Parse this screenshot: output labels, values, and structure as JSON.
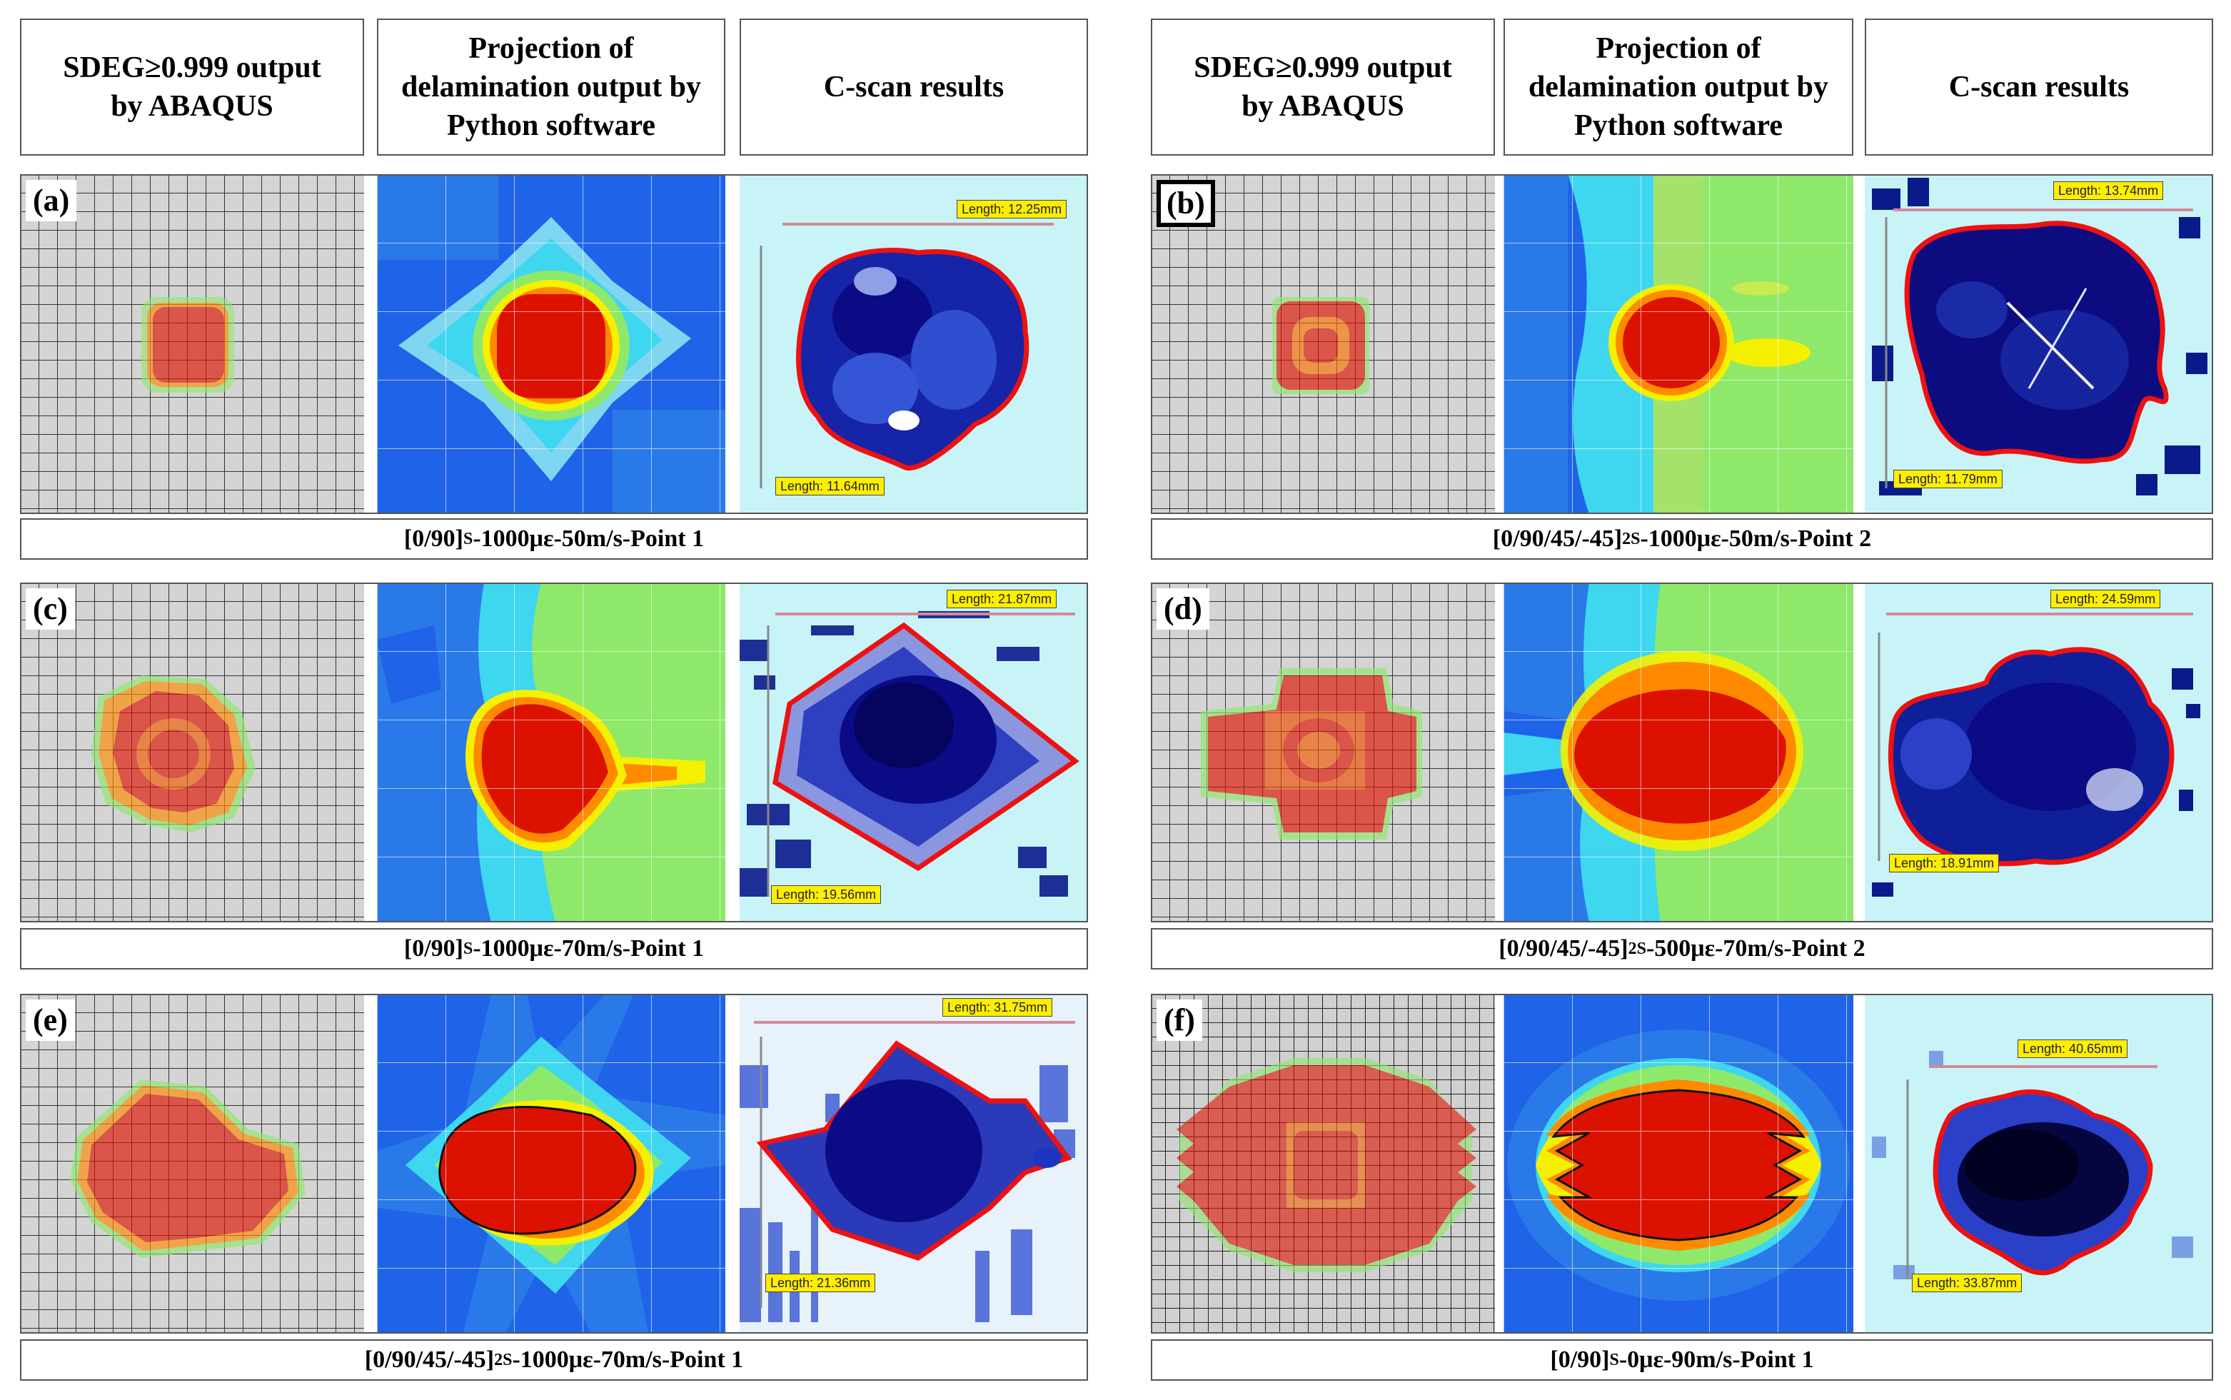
{
  "headers": {
    "col1": "SDEG≥0.999 output\nby ABAQUS",
    "col2": "Projection of\ndelamination output by\nPython software",
    "col3": "C-scan results"
  },
  "panels": {
    "a": {
      "label": "(a)",
      "cap_pre": "[0/90]",
      "cap_sub": "S",
      "cap_post": "-1000με-50m/s-Point 1",
      "len_h": "Length: 12.25mm",
      "len_v": "Length: 11.64mm"
    },
    "b": {
      "label": "(b)",
      "cap_pre": "[0/90/45/-45]",
      "cap_sub": "2S",
      "cap_post": "-1000με-50m/s-Point 2",
      "len_h": "Length: 13.74mm",
      "len_v": "Length: 11.79mm"
    },
    "c": {
      "label": "(c)",
      "cap_pre": "[0/90]",
      "cap_sub": "S",
      "cap_post": "-1000με-70m/s-Point 1",
      "len_h": "Length: 21.87mm",
      "len_v": "Length: 19.56mm"
    },
    "d": {
      "label": "(d)",
      "cap_pre": "[0/90/45/-45]",
      "cap_sub": "2S",
      "cap_post": "-500με-70m/s-Point 2",
      "len_h": "Length: 24.59mm",
      "len_v": "Length: 18.91mm"
    },
    "e": {
      "label": "(e)",
      "cap_pre": "[0/90/45/-45]",
      "cap_sub": "2S",
      "cap_post": "-1000με-70m/s-Point 1",
      "len_h": "Length: 31.75mm",
      "len_v": "Length: 21.36mm"
    },
    "f": {
      "label": "(f)",
      "cap_pre": "[0/90]",
      "cap_sub": "S",
      "cap_post": "-0με-90m/s-Point 1",
      "len_h": "Length: 40.65mm",
      "len_v": "Length: 33.87mm"
    }
  },
  "colors": {
    "damage_red": "#dd1100",
    "orange": "#ff8a00",
    "yellow": "#f5f000",
    "green": "#8ee86a",
    "cyan": "#3fd6f0",
    "blue_mid": "#2a79e8",
    "blue_deep": "#1230c8",
    "navy": "#0a0a7a",
    "cscan_bg": "#c8f4f8",
    "outline_red": "#ee1111",
    "grid_bg": "#d4d4d4"
  }
}
